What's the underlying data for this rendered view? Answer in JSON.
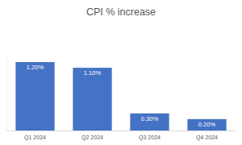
{
  "chart_data": {
    "type": "bar",
    "title": "CPI % increase",
    "categories": [
      "Q1 2024",
      "Q2 2024",
      "Q3 2024",
      "Q4 2024"
    ],
    "values": [
      1.2,
      1.1,
      0.3,
      0.2
    ],
    "value_labels": [
      "1.20%",
      "1.10%",
      "0.30%",
      "0.20%"
    ],
    "color": "#4472c4",
    "ylim": [
      0,
      1.3
    ],
    "grid": false,
    "data_labels": true,
    "tick_labels": "x"
  }
}
